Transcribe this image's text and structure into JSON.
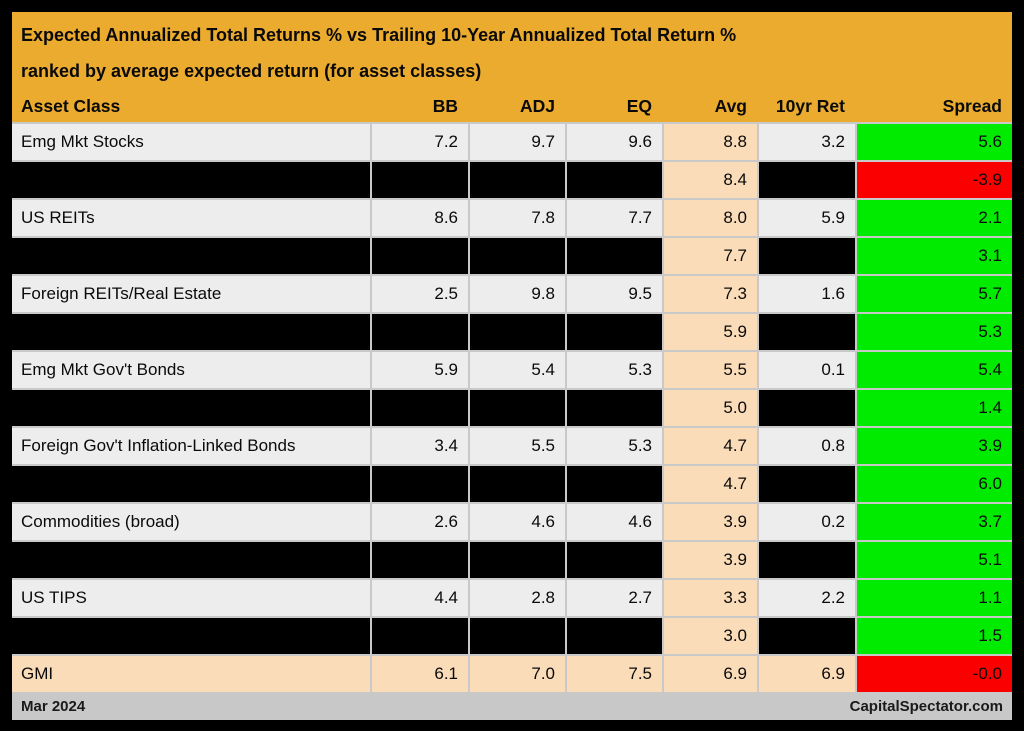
{
  "title": {
    "line1": "Expected Annualized Total Returns % vs Trailing 10-Year Annualized Total Return %",
    "line2": "ranked by average expected return (for asset classes)"
  },
  "chart_data": {
    "type": "table",
    "columns": [
      "Asset Class",
      "BB",
      "ADJ",
      "EQ",
      "Avg",
      "10yr Ret",
      "Spread"
    ],
    "rows": [
      {
        "asset": "Emg Mkt Stocks",
        "bb": "7.2",
        "adj": "9.7",
        "eq": "9.6",
        "avg": "8.8",
        "ret10": "3.2",
        "spread": "5.6",
        "spread_color": "green",
        "redacted": false
      },
      {
        "redacted": true,
        "avg": "8.4",
        "spread": "-3.9",
        "spread_color": "red"
      },
      {
        "asset": "US REITs",
        "bb": "8.6",
        "adj": "7.8",
        "eq": "7.7",
        "avg": "8.0",
        "ret10": "5.9",
        "spread": "2.1",
        "spread_color": "green",
        "redacted": false
      },
      {
        "redacted": true,
        "avg": "7.7",
        "spread": "3.1",
        "spread_color": "green"
      },
      {
        "asset": "Foreign REITs/Real Estate",
        "bb": "2.5",
        "adj": "9.8",
        "eq": "9.5",
        "avg": "7.3",
        "ret10": "1.6",
        "spread": "5.7",
        "spread_color": "green",
        "redacted": false
      },
      {
        "redacted": true,
        "avg": "5.9",
        "spread": "5.3",
        "spread_color": "green"
      },
      {
        "asset": "Emg Mkt Gov't Bonds",
        "bb": "5.9",
        "adj": "5.4",
        "eq": "5.3",
        "avg": "5.5",
        "ret10": "0.1",
        "spread": "5.4",
        "spread_color": "green",
        "redacted": false
      },
      {
        "redacted": true,
        "avg": "5.0",
        "spread": "1.4",
        "spread_color": "green"
      },
      {
        "asset": "Foreign Gov't Inflation-Linked Bonds",
        "bb": "3.4",
        "adj": "5.5",
        "eq": "5.3",
        "avg": "4.7",
        "ret10": "0.8",
        "spread": "3.9",
        "spread_color": "green",
        "redacted": false
      },
      {
        "redacted": true,
        "avg": "4.7",
        "spread": "6.0",
        "spread_color": "green"
      },
      {
        "asset": "Commodities (broad)",
        "bb": "2.6",
        "adj": "4.6",
        "eq": "4.6",
        "avg": "3.9",
        "ret10": "0.2",
        "spread": "3.7",
        "spread_color": "green",
        "redacted": false
      },
      {
        "redacted": true,
        "avg": "3.9",
        "spread": "5.1",
        "spread_color": "green"
      },
      {
        "asset": "US TIPS",
        "bb": "4.4",
        "adj": "2.8",
        "eq": "2.7",
        "avg": "3.3",
        "ret10": "2.2",
        "spread": "1.1",
        "spread_color": "green",
        "redacted": false
      },
      {
        "redacted": true,
        "avg": "3.0",
        "spread": "1.5",
        "spread_color": "green"
      },
      {
        "asset": "GMI",
        "bb": "6.1",
        "adj": "7.0",
        "eq": "7.5",
        "avg": "6.9",
        "ret10": "6.9",
        "spread": "-0.0",
        "spread_color": "red",
        "redacted": false,
        "highlight": true
      }
    ]
  },
  "footer": {
    "left": "Mar 2024",
    "right": "CapitalSpectator.com"
  },
  "colors": {
    "gold": "#EBAB2E",
    "peach": "#FBDCB9",
    "green": "#00EB00",
    "red": "#FB0000",
    "rowGray": "#EDEDED",
    "gap": "#C9C9C9",
    "footerGray": "#C8C8C8"
  }
}
